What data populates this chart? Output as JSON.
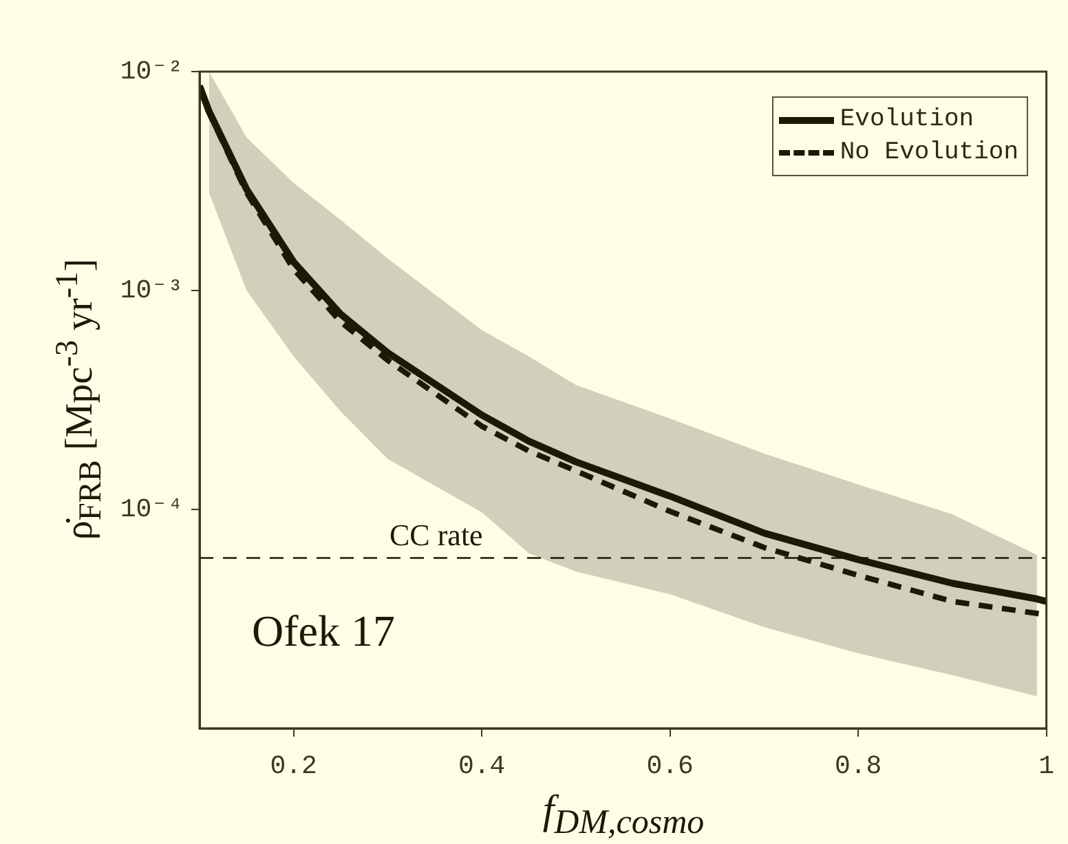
{
  "chart_data": {
    "type": "line",
    "xlabel": "f$_{DM,cosmo}$",
    "ylabel": "ρ̇$_{FRB}$ [Mpc$^{-3}$ yr$^{-1}$]",
    "x": [
      0.1,
      0.11,
      0.15,
      0.2,
      0.25,
      0.3,
      0.4,
      0.45,
      0.5,
      0.6,
      0.7,
      0.8,
      0.9,
      0.99,
      1.0
    ],
    "series": [
      {
        "name": "Evolution",
        "color": "#1a1a05",
        "line_style": "solid",
        "values": [
          0.0086,
          0.0066,
          0.0029,
          0.00135,
          0.00078,
          0.00052,
          0.00027,
          0.000205,
          0.000165,
          0.000115,
          7.8e-05,
          5.9e-05,
          4.6e-05,
          3.9e-05,
          3.8e-05
        ],
        "lower": [
          null,
          0.0028,
          0.001,
          0.0005,
          0.00028,
          0.00017,
          9.7e-05,
          6.3e-05,
          5.2e-05,
          4.1e-05,
          2.9e-05,
          2.2e-05,
          1.75e-05,
          1.4e-05,
          null
        ],
        "upper": [
          null,
          0.01,
          0.005,
          0.0031,
          0.0021,
          0.0014,
          0.00066,
          0.0005,
          0.00037,
          0.00026,
          0.00018,
          0.00013,
          9.5e-05,
          6.2e-05,
          null
        ]
      },
      {
        "name": "No Evolution",
        "color": "#1a1a05",
        "line_style": "dashed",
        "values": [
          0.0086,
          0.0065,
          0.0028,
          0.00125,
          0.00072,
          0.00048,
          0.00024,
          0.000185,
          0.00015,
          9.8e-05,
          6.7e-05,
          5e-05,
          3.8e-05,
          3.35e-05,
          3.3e-05
        ]
      }
    ],
    "xlim": [
      0.1,
      1
    ],
    "xticks": [
      0.2,
      0.4,
      0.6,
      0.8,
      1
    ],
    "ylim": [
      1e-05,
      0.01
    ],
    "yticks": [
      {
        "value": 0.01,
        "label": "10⁻²"
      },
      {
        "value": 0.001,
        "label": "10⁻³"
      },
      {
        "value": 0.0001,
        "label": "10⁻⁴"
      }
    ],
    "log": true,
    "grid": false,
    "legend": "top right",
    "marker": "none",
    "ref_lines": [
      {
        "axis": "y",
        "value": 6e-05,
        "label": "CC rate",
        "line_style": "dashed"
      }
    ],
    "annotations": [
      "Ofek 17"
    ]
  }
}
